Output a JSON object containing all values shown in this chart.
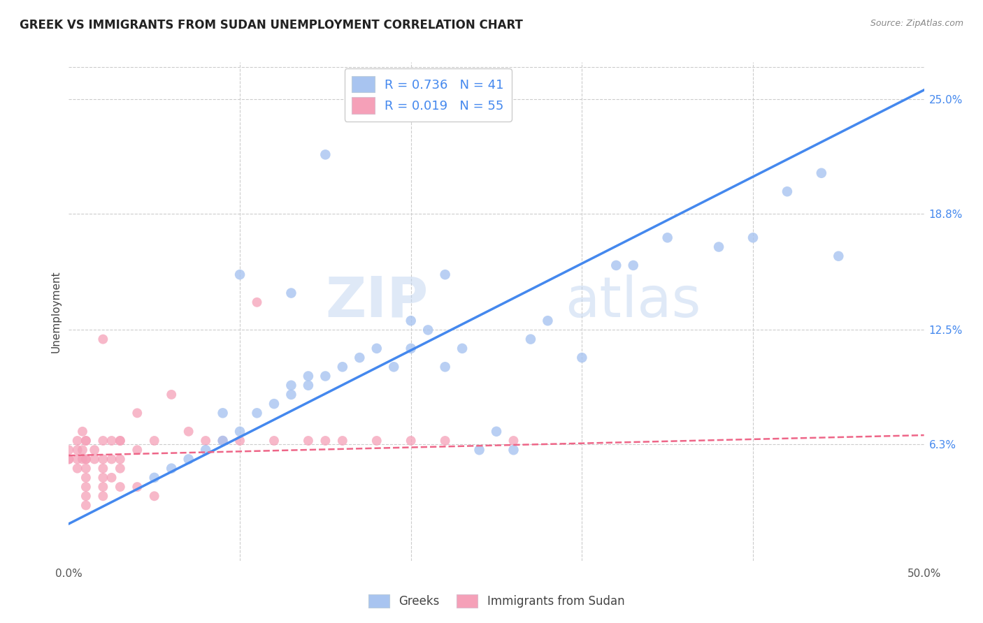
{
  "title": "GREEK VS IMMIGRANTS FROM SUDAN UNEMPLOYMENT CORRELATION CHART",
  "source": "Source: ZipAtlas.com",
  "ylabel": "Unemployment",
  "x_min": 0.0,
  "x_max": 0.5,
  "y_min": 0.0,
  "y_max": 0.27,
  "y_tick_labels_right": [
    "25.0%",
    "18.8%",
    "12.5%",
    "6.3%"
  ],
  "y_tick_values_right": [
    0.25,
    0.188,
    0.125,
    0.063
  ],
  "watermark_zip": "ZIP",
  "watermark_atlas": "atlas",
  "legend_greek_R": "0.736",
  "legend_greek_N": "41",
  "legend_sudan_R": "0.019",
  "legend_sudan_N": "55",
  "color_greek": "#a8c4f0",
  "color_sudan": "#f5a0b8",
  "color_greek_line": "#4488ee",
  "color_sudan_line": "#ee6688",
  "color_legend_blue": "#4488ee",
  "greek_scatter_x": [
    0.05,
    0.06,
    0.07,
    0.08,
    0.09,
    0.09,
    0.1,
    0.11,
    0.12,
    0.13,
    0.13,
    0.14,
    0.14,
    0.15,
    0.16,
    0.17,
    0.18,
    0.19,
    0.2,
    0.21,
    0.22,
    0.23,
    0.24,
    0.25,
    0.26,
    0.27,
    0.28,
    0.3,
    0.32,
    0.33,
    0.35,
    0.38,
    0.4,
    0.42,
    0.44,
    0.45,
    0.13,
    0.2,
    0.22,
    0.1,
    0.15
  ],
  "greek_scatter_y": [
    0.045,
    0.05,
    0.055,
    0.06,
    0.065,
    0.08,
    0.07,
    0.08,
    0.085,
    0.09,
    0.095,
    0.095,
    0.1,
    0.1,
    0.105,
    0.11,
    0.115,
    0.105,
    0.115,
    0.125,
    0.105,
    0.115,
    0.06,
    0.07,
    0.06,
    0.12,
    0.13,
    0.11,
    0.16,
    0.16,
    0.175,
    0.17,
    0.175,
    0.2,
    0.21,
    0.165,
    0.145,
    0.13,
    0.155,
    0.155,
    0.22
  ],
  "sudan_scatter_x": [
    0.0,
    0.0,
    0.0,
    0.005,
    0.005,
    0.005,
    0.008,
    0.008,
    0.01,
    0.01,
    0.01,
    0.01,
    0.01,
    0.01,
    0.01,
    0.015,
    0.015,
    0.02,
    0.02,
    0.02,
    0.02,
    0.02,
    0.025,
    0.025,
    0.03,
    0.03,
    0.03,
    0.04,
    0.04,
    0.05,
    0.05,
    0.06,
    0.07,
    0.08,
    0.09,
    0.1,
    0.11,
    0.12,
    0.14,
    0.16,
    0.02,
    0.03,
    0.04,
    0.005,
    0.008,
    0.01,
    0.01,
    0.02,
    0.025,
    0.03,
    0.15,
    0.18,
    0.2,
    0.22,
    0.26
  ],
  "sudan_scatter_y": [
    0.055,
    0.06,
    0.055,
    0.05,
    0.06,
    0.055,
    0.06,
    0.055,
    0.055,
    0.05,
    0.045,
    0.04,
    0.035,
    0.03,
    0.055,
    0.055,
    0.06,
    0.05,
    0.055,
    0.045,
    0.04,
    0.035,
    0.055,
    0.045,
    0.05,
    0.055,
    0.04,
    0.06,
    0.04,
    0.065,
    0.035,
    0.09,
    0.07,
    0.065,
    0.065,
    0.065,
    0.14,
    0.065,
    0.065,
    0.065,
    0.12,
    0.065,
    0.08,
    0.065,
    0.07,
    0.065,
    0.065,
    0.065,
    0.065,
    0.065,
    0.065,
    0.065,
    0.065,
    0.065,
    0.065
  ],
  "greek_line_x": [
    0.0,
    0.5
  ],
  "greek_line_y": [
    0.02,
    0.255
  ],
  "sudan_line_x": [
    0.0,
    0.5
  ],
  "sudan_line_y": [
    0.057,
    0.068
  ],
  "background_color": "#ffffff",
  "grid_color": "#cccccc"
}
